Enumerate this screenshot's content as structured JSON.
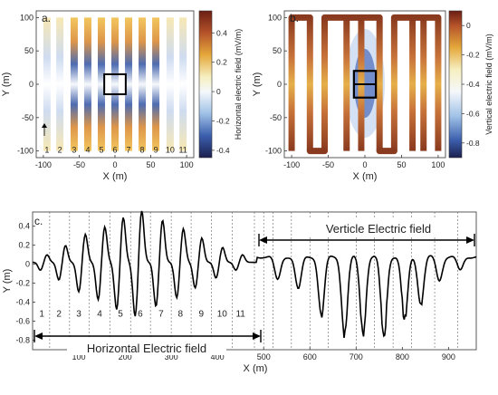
{
  "chart_data": [
    {
      "panel": "a.",
      "type": "heatmap",
      "xlabel": "X (m)",
      "ylabel": "Y (m)",
      "xlim": [
        -110,
        110
      ],
      "ylim": [
        -110,
        110
      ],
      "xticks": [
        -100,
        -50,
        0,
        50,
        100
      ],
      "yticks": [
        -100,
        -50,
        0,
        50,
        100
      ],
      "colorbar": {
        "label": "Horizontal electric field (mV/m)",
        "range": [
          -0.45,
          0.55
        ],
        "ticks": [
          0.4,
          0.2,
          0,
          -0.2,
          -0.4
        ]
      },
      "line_x": [
        -95,
        -77,
        -57,
        -38,
        -19,
        0,
        19,
        38,
        57,
        77,
        95
      ],
      "line_labels": [
        "1",
        "2",
        "3",
        "4",
        "5",
        "6",
        "7",
        "8",
        "9",
        "10",
        "11"
      ],
      "source_box": {
        "x": [
          -15,
          15
        ],
        "y": [
          -15,
          15
        ]
      }
    },
    {
      "panel": "b.",
      "type": "heatmap",
      "xlabel": "X (m)",
      "ylabel": "Y (m)",
      "xlim": [
        -110,
        110
      ],
      "ylim": [
        -110,
        110
      ],
      "xticks": [
        -100,
        -50,
        0,
        50,
        100
      ],
      "yticks": [
        -100,
        -50,
        0,
        50,
        100
      ],
      "colorbar": {
        "label": "Vertical electric field (mV/m)",
        "range": [
          -0.9,
          0.1
        ],
        "ticks": [
          0,
          -0.2,
          -0.4,
          -0.6,
          -0.8
        ]
      },
      "loops": [
        [
          -100,
          -75
        ],
        [
          -55,
          -25
        ],
        [
          -5,
          20
        ],
        [
          40,
          65
        ],
        [
          80,
          100
        ]
      ],
      "source_box": {
        "x": [
          -15,
          15
        ],
        "y": [
          -20,
          20
        ]
      }
    },
    {
      "panel": "c.",
      "type": "line",
      "xlabel": "X (m)",
      "ylabel": "Y (m)",
      "xlim": [
        0,
        960
      ],
      "ylim": [
        -0.9,
        0.55
      ],
      "xticks": [
        100,
        200,
        300,
        400,
        500,
        600,
        700,
        800,
        900
      ],
      "yticks": [
        0.4,
        0.2,
        0,
        -0.2,
        -0.4,
        -0.6,
        -0.8
      ],
      "segment_labels": [
        "1",
        "2",
        "3",
        "4",
        "5",
        "6",
        "7",
        "8",
        "9",
        "10",
        "11"
      ],
      "segment_label_x": [
        20,
        57,
        100,
        145,
        190,
        233,
        278,
        320,
        365,
        410,
        450
      ],
      "segment_lines_x": [
        37,
        80,
        122,
        167,
        212,
        255,
        300,
        343,
        387,
        432,
        480,
        500,
        520,
        560,
        600,
        640,
        700,
        740,
        780,
        820,
        870,
        920
      ],
      "annotations": [
        "Horizontal Electric field",
        "Verticle Electric field"
      ],
      "horizontal_peaks": [
        {
          "x": 25,
          "a": 0.08
        },
        {
          "x": 65,
          "a": 0.18
        },
        {
          "x": 108,
          "a": 0.3
        },
        {
          "x": 150,
          "a": 0.38
        },
        {
          "x": 190,
          "a": 0.48
        },
        {
          "x": 230,
          "a": 0.55
        },
        {
          "x": 275,
          "a": 0.45
        },
        {
          "x": 320,
          "a": 0.36
        },
        {
          "x": 360,
          "a": 0.26
        },
        {
          "x": 405,
          "a": 0.16
        },
        {
          "x": 448,
          "a": 0.08
        }
      ],
      "vertical_dips": [
        {
          "x": 530,
          "d": -0.25
        },
        {
          "x": 575,
          "d": -0.35
        },
        {
          "x": 625,
          "d": -0.62
        },
        {
          "x": 675,
          "d": -0.82
        },
        {
          "x": 715,
          "d": -0.8
        },
        {
          "x": 760,
          "d": -0.84
        },
        {
          "x": 805,
          "d": -0.68
        },
        {
          "x": 840,
          "d": -0.5
        },
        {
          "x": 880,
          "d": -0.25
        },
        {
          "x": 925,
          "d": -0.15
        }
      ]
    }
  ]
}
